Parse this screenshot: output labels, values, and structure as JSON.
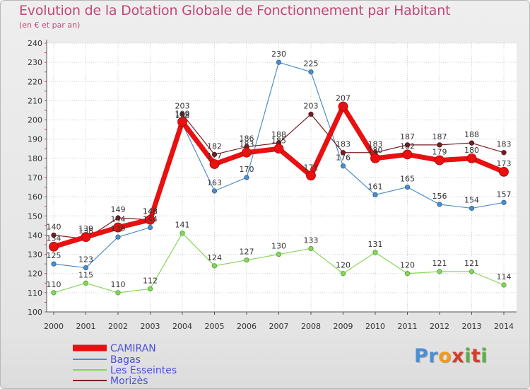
{
  "header": {
    "title": "Evolution de la Dotation Globale de Fonctionnement par Habitant",
    "subtitle": "(en € et par an)"
  },
  "logo": {
    "parts": [
      "Pr",
      "o",
      "x",
      "i",
      "t",
      "i"
    ],
    "colors": [
      "#4a8fd6",
      "#f29a1a",
      "#d93b2a",
      "#5cb04a",
      "#d93b2a",
      "#5cb04a"
    ]
  },
  "chart_data": {
    "type": "line",
    "title": "Evolution de la Dotation Globale de Fonctionnement par Habitant",
    "subtitle": "(en € et par an)",
    "x": [
      "2000",
      "2001",
      "2002",
      "2003",
      "2004",
      "2005",
      "2006",
      "2007",
      "2008",
      "2009",
      "2010",
      "2011",
      "2012",
      "2013",
      "2014"
    ],
    "ylim": [
      100,
      240
    ],
    "yticks": [
      100,
      110,
      120,
      130,
      140,
      150,
      160,
      170,
      180,
      190,
      200,
      210,
      220,
      230,
      240
    ],
    "grid": true,
    "legend_position": "bottom-left",
    "series": [
      {
        "name": "CAMIRAN",
        "color": "#e81010",
        "values": [
          134,
          139,
          144,
          148,
          199,
          177,
          183,
          185,
          171,
          207,
          180,
          182,
          179,
          180,
          173
        ]
      },
      {
        "name": "Bagas",
        "color": "#4d8ec9",
        "values": [
          125,
          123,
          139,
          144,
          198,
          163,
          170,
          230,
          225,
          176,
          161,
          165,
          156,
          154,
          157
        ]
      },
      {
        "name": "Les Esseintes",
        "color": "#86d65a",
        "values": [
          110,
          115,
          110,
          112,
          141,
          124,
          127,
          130,
          133,
          120,
          131,
          120,
          121,
          121,
          114
        ]
      },
      {
        "name": "Morizès",
        "color": "#7a1e24",
        "values": [
          140,
          138,
          149,
          148,
          203,
          182,
          186,
          188,
          203,
          183,
          183,
          187,
          187,
          188,
          183
        ]
      }
    ]
  }
}
